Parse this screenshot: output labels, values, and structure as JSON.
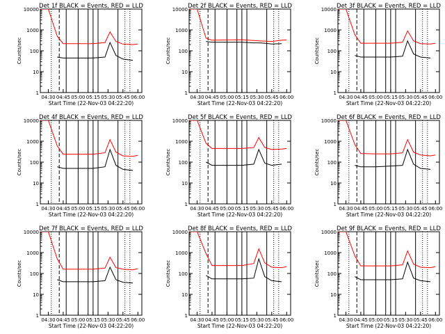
{
  "figure": {
    "xlabel": "Start Time (22-Nov-03 04:22:20)",
    "ylabel": "Counts/sec",
    "xticks": [
      "04:30",
      "04:45",
      "05:00",
      "05:15",
      "05:30",
      "05:45",
      "06:00"
    ],
    "yticks": [
      "1",
      "10",
      "100",
      "1000",
      "10000"
    ],
    "colors": {
      "events": "#000000",
      "lld": "#ff0000",
      "frame": "#000000"
    }
  },
  "chart_data": [
    {
      "type": "line",
      "title": "Det 1f BLACK = Events, RED = LLD",
      "ylim": [
        1,
        10000
      ],
      "yscale": "log",
      "x": [
        "04:22",
        "04:30",
        "04:39",
        "04:45",
        "05:00",
        "05:15",
        "05:27",
        "05:32",
        "05:38",
        "05:45",
        "05:55",
        "06:00"
      ],
      "series": [
        {
          "name": "Events",
          "values": [
            null,
            null,
            50,
            45,
            45,
            45,
            50,
            250,
            60,
            40,
            35,
            null
          ]
        },
        {
          "name": "LLD",
          "values": [
            10000,
            10000,
            500,
            220,
            220,
            220,
            250,
            800,
            280,
            210,
            200,
            210
          ]
        }
      ]
    },
    {
      "type": "line",
      "title": "Det 2f BLACK = Events, RED = LLD",
      "ylim": [
        1,
        10000
      ],
      "yscale": "log",
      "x": [
        "04:22",
        "04:30",
        "04:39",
        "04:45",
        "05:00",
        "05:15",
        "05:27",
        "05:32",
        "05:38",
        "05:45",
        "05:55",
        "06:00"
      ],
      "series": [
        {
          "name": "Events",
          "values": [
            null,
            null,
            280,
            260,
            260,
            260,
            240,
            240,
            230,
            210,
            220,
            null
          ]
        },
        {
          "name": "LLD",
          "values": [
            10000,
            10000,
            400,
            320,
            330,
            340,
            310,
            300,
            290,
            280,
            320,
            330
          ]
        }
      ]
    },
    {
      "type": "line",
      "title": "Det 3f BLACK = Events, RED = LLD",
      "ylim": [
        1,
        10000
      ],
      "yscale": "log",
      "x": [
        "04:22",
        "04:30",
        "04:39",
        "04:45",
        "05:00",
        "05:15",
        "05:27",
        "05:32",
        "05:38",
        "05:45",
        "05:55",
        "06:00"
      ],
      "series": [
        {
          "name": "Events",
          "values": [
            null,
            null,
            60,
            50,
            50,
            50,
            55,
            300,
            70,
            50,
            45,
            null
          ]
        },
        {
          "name": "LLD",
          "values": [
            10000,
            10000,
            600,
            230,
            230,
            230,
            260,
            900,
            300,
            220,
            210,
            230
          ]
        }
      ]
    },
    {
      "type": "line",
      "title": "Det 4f BLACK = Events, RED = LLD",
      "ylim": [
        1,
        10000
      ],
      "yscale": "log",
      "x": [
        "04:22",
        "04:30",
        "04:39",
        "04:45",
        "05:00",
        "05:15",
        "05:27",
        "05:32",
        "05:38",
        "05:45",
        "05:55",
        "06:00"
      ],
      "series": [
        {
          "name": "Events",
          "values": [
            null,
            null,
            60,
            50,
            50,
            50,
            60,
            400,
            70,
            45,
            40,
            null
          ]
        },
        {
          "name": "LLD",
          "values": [
            10000,
            10000,
            600,
            240,
            240,
            240,
            280,
            1200,
            300,
            200,
            190,
            210
          ]
        }
      ]
    },
    {
      "type": "line",
      "title": "Det 5f BLACK = Events, RED = LLD",
      "ylim": [
        1,
        10000
      ],
      "yscale": "log",
      "x": [
        "04:22",
        "04:30",
        "04:39",
        "04:45",
        "05:00",
        "05:15",
        "05:27",
        "05:32",
        "05:38",
        "05:45",
        "05:55",
        "06:00"
      ],
      "series": [
        {
          "name": "Events",
          "values": [
            null,
            null,
            100,
            70,
            70,
            70,
            80,
            400,
            90,
            70,
            80,
            null
          ]
        },
        {
          "name": "LLD",
          "values": [
            10000,
            10000,
            800,
            450,
            450,
            450,
            500,
            1500,
            500,
            400,
            420,
            450
          ]
        }
      ]
    },
    {
      "type": "line",
      "title": "Det 6f BLACK = Events, RED = LLD",
      "ylim": [
        1,
        10000
      ],
      "yscale": "log",
      "x": [
        "04:22",
        "04:30",
        "04:39",
        "04:45",
        "05:00",
        "05:15",
        "05:27",
        "05:32",
        "05:38",
        "05:45",
        "05:55",
        "06:00"
      ],
      "series": [
        {
          "name": "Events",
          "values": [
            null,
            null,
            70,
            60,
            60,
            65,
            70,
            400,
            80,
            50,
            45,
            null
          ]
        },
        {
          "name": "LLD",
          "values": [
            10000,
            10000,
            700,
            260,
            250,
            250,
            280,
            1200,
            300,
            220,
            200,
            220
          ]
        }
      ]
    },
    {
      "type": "line",
      "title": "Det 7f BLACK = Events, RED = LLD",
      "ylim": [
        1,
        10000
      ],
      "yscale": "log",
      "x": [
        "04:22",
        "04:30",
        "04:39",
        "04:45",
        "05:00",
        "05:15",
        "05:27",
        "05:32",
        "05:38",
        "05:45",
        "05:55",
        "06:00"
      ],
      "series": [
        {
          "name": "Events",
          "values": [
            null,
            null,
            50,
            40,
            40,
            40,
            45,
            200,
            50,
            38,
            35,
            null
          ]
        },
        {
          "name": "LLD",
          "values": [
            10000,
            10000,
            500,
            160,
            160,
            160,
            180,
            600,
            190,
            160,
            150,
            170
          ]
        }
      ]
    },
    {
      "type": "line",
      "title": "Det 8f BLACK = Events, RED = LLD",
      "ylim": [
        1,
        10000
      ],
      "yscale": "log",
      "x": [
        "04:22",
        "04:30",
        "04:39",
        "04:45",
        "05:00",
        "05:15",
        "05:27",
        "05:32",
        "05:38",
        "05:45",
        "05:55",
        "06:00"
      ],
      "series": [
        {
          "name": "Events",
          "values": [
            null,
            null,
            80,
            55,
            55,
            55,
            60,
            500,
            70,
            45,
            40,
            null
          ]
        },
        {
          "name": "LLD",
          "values": [
            10000,
            10000,
            900,
            240,
            240,
            240,
            300,
            1500,
            320,
            200,
            190,
            210
          ]
        }
      ]
    },
    {
      "type": "line",
      "title": "Det 9f BLACK = Events, RED = LLD",
      "ylim": [
        1,
        10000
      ],
      "yscale": "log",
      "x": [
        "04:22",
        "04:30",
        "04:39",
        "04:45",
        "05:00",
        "05:15",
        "05:27",
        "05:32",
        "05:38",
        "05:45",
        "05:55",
        "06:00"
      ],
      "series": [
        {
          "name": "Events",
          "values": [
            null,
            null,
            70,
            50,
            50,
            50,
            55,
            350,
            60,
            45,
            40,
            null
          ]
        },
        {
          "name": "LLD",
          "values": [
            10000,
            10000,
            700,
            230,
            230,
            230,
            260,
            1200,
            280,
            200,
            190,
            210
          ]
        }
      ]
    }
  ]
}
